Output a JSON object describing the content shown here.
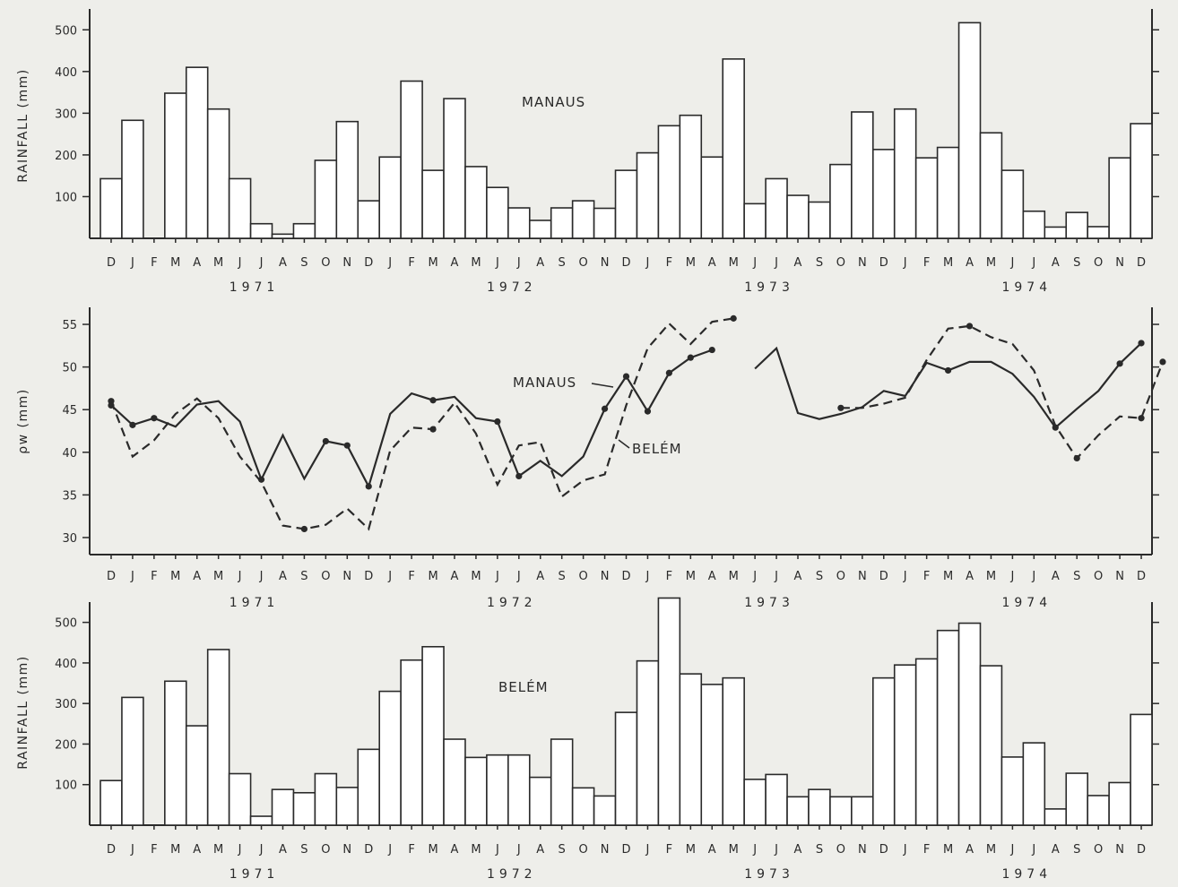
{
  "months": [
    "D",
    "J",
    "F",
    "M",
    "A",
    "M",
    "J",
    "J",
    "A",
    "S",
    "O",
    "N",
    "D",
    "J",
    "F",
    "M",
    "A",
    "M",
    "J",
    "J",
    "A",
    "S",
    "O",
    "N",
    "D",
    "J",
    "F",
    "M",
    "A",
    "M",
    "J",
    "J",
    "A",
    "S",
    "O",
    "N",
    "D",
    "J",
    "F",
    "M",
    "A",
    "M",
    "J",
    "J",
    "A",
    "S",
    "O",
    "N",
    "D"
  ],
  "years": [
    "1971",
    "1972",
    "1973",
    "1974"
  ],
  "chart_data": [
    {
      "type": "bar",
      "annotation": "MANAUS",
      "ylabel": "RAINFALL (mm)",
      "ylim": [
        0,
        550
      ],
      "yticks": [
        100,
        200,
        300,
        400,
        500
      ],
      "values": [
        143,
        283,
        0,
        348,
        410,
        310,
        143,
        35,
        10,
        35,
        187,
        280,
        90,
        195,
        377,
        163,
        335,
        172,
        122,
        73,
        43,
        73,
        90,
        72,
        163,
        205,
        270,
        295,
        195,
        430,
        83,
        143,
        103,
        87,
        177,
        303,
        213,
        310,
        193,
        218,
        517,
        253,
        163,
        65,
        27,
        62,
        28,
        193,
        275
      ]
    },
    {
      "type": "line",
      "ylabel": "ρw (mm)",
      "ylim": [
        28,
        57
      ],
      "yticks": [
        30,
        35,
        40,
        45,
        50,
        55
      ],
      "annotations": [
        "MANAUS",
        "BELÉM"
      ],
      "series": [
        {
          "name": "MANAUS",
          "style": "solid",
          "segments": [
            [
              [
                0,
                45.5
              ],
              [
                1,
                43.2
              ],
              [
                2,
                44.0
              ],
              [
                3,
                43.0
              ],
              [
                4,
                45.6
              ],
              [
                5,
                46.0
              ],
              [
                6,
                43.6
              ],
              [
                7,
                36.8
              ],
              [
                8,
                42.0
              ],
              [
                9,
                36.9
              ],
              [
                10,
                41.3
              ],
              [
                11,
                40.8
              ],
              [
                12,
                36.0
              ],
              [
                13,
                44.5
              ],
              [
                14,
                46.9
              ],
              [
                15,
                46.1
              ],
              [
                16,
                46.5
              ],
              [
                17,
                44.0
              ],
              [
                18,
                43.6
              ],
              [
                19,
                37.2
              ],
              [
                20,
                39.0
              ],
              [
                21,
                37.2
              ],
              [
                22,
                39.5
              ],
              [
                23,
                45.1
              ],
              [
                24,
                48.9
              ],
              [
                25,
                44.8
              ],
              [
                26,
                49.3
              ],
              [
                27,
                51.1
              ],
              [
                28,
                52.0
              ]
            ],
            [
              [
                30,
                49.8
              ],
              [
                31,
                52.2
              ],
              [
                32,
                44.6
              ],
              [
                33,
                43.9
              ],
              [
                34,
                44.5
              ],
              [
                35,
                45.3
              ],
              [
                36,
                47.2
              ],
              [
                37,
                46.6
              ],
              [
                38,
                50.5
              ],
              [
                39,
                49.6
              ],
              [
                40,
                50.6
              ],
              [
                41,
                50.6
              ],
              [
                42,
                49.2
              ],
              [
                43,
                46.5
              ],
              [
                44,
                42.9
              ],
              [
                45,
                45.1
              ],
              [
                46,
                47.2
              ],
              [
                47,
                50.4
              ],
              [
                48,
                52.8
              ]
            ]
          ],
          "markers": [
            0,
            1,
            2,
            7,
            10,
            11,
            12,
            15,
            18,
            19,
            23,
            24,
            25,
            26,
            27,
            28,
            39,
            44,
            47,
            48
          ]
        },
        {
          "name": "BELÉM",
          "style": "dashed",
          "segments": [
            [
              [
                0,
                46.0
              ],
              [
                1,
                39.5
              ],
              [
                2,
                41.4
              ],
              [
                3,
                44.5
              ],
              [
                4,
                46.3
              ],
              [
                5,
                44.0
              ],
              [
                6,
                39.5
              ],
              [
                7,
                36.5
              ],
              [
                8,
                31.4
              ],
              [
                9,
                31.0
              ],
              [
                10,
                31.5
              ],
              [
                11,
                33.4
              ],
              [
                12,
                31.0
              ],
              [
                13,
                40.2
              ],
              [
                14,
                42.9
              ],
              [
                15,
                42.7
              ],
              [
                16,
                45.8
              ],
              [
                17,
                42.2
              ],
              [
                18,
                36.2
              ],
              [
                19,
                40.8
              ],
              [
                20,
                41.2
              ],
              [
                21,
                34.8
              ],
              [
                22,
                36.7
              ],
              [
                23,
                37.4
              ],
              [
                24,
                45.5
              ],
              [
                25,
                52.2
              ],
              [
                26,
                55.1
              ],
              [
                27,
                52.7
              ],
              [
                28,
                55.3
              ],
              [
                29,
                55.7
              ]
            ],
            [
              [
                34,
                45.2
              ],
              [
                35,
                45.2
              ],
              [
                36,
                45.7
              ],
              [
                37,
                46.4
              ],
              [
                38,
                50.8
              ],
              [
                39,
                54.5
              ],
              [
                40,
                54.8
              ],
              [
                41,
                53.5
              ],
              [
                42,
                52.7
              ],
              [
                43,
                49.6
              ],
              [
                44,
                43.1
              ],
              [
                45,
                39.3
              ],
              [
                46,
                42.0
              ],
              [
                47,
                44.2
              ],
              [
                48,
                44.0
              ],
              [
                49,
                50.6
              ]
            ]
          ],
          "markers": [
            0,
            9,
            15,
            29,
            34,
            40,
            45,
            48,
            49
          ]
        }
      ]
    },
    {
      "type": "bar",
      "annotation": "BELÉM",
      "ylabel": "RAINFALL (mm)",
      "ylim": [
        0,
        550
      ],
      "yticks": [
        100,
        200,
        300,
        400,
        500
      ],
      "values": [
        110,
        315,
        0,
        355,
        245,
        433,
        127,
        22,
        88,
        80,
        127,
        93,
        187,
        330,
        407,
        440,
        212,
        167,
        173,
        173,
        118,
        212,
        92,
        72,
        278,
        405,
        560,
        373,
        347,
        363,
        113,
        125,
        70,
        88,
        70,
        70,
        363,
        395,
        410,
        480,
        498,
        393,
        168,
        203,
        40,
        128,
        73,
        105,
        273
      ]
    }
  ]
}
